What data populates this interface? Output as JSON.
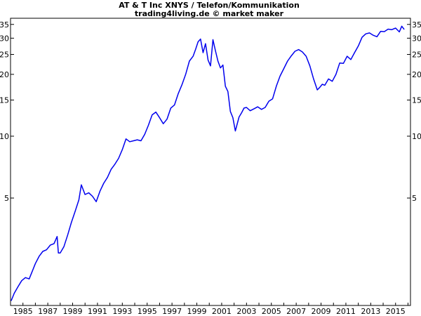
{
  "chart_data": {
    "type": "line",
    "title": "AT & T Inc XNYS / Telefon/Kommunikation",
    "subtitle": "trading4living.de © market maker",
    "x_unit": "year",
    "y_scale": "log",
    "xlim": [
      1984.0,
      2016.2
    ],
    "ylim": [
      1.5,
      37.5
    ],
    "x_ticks": [
      "1985",
      "1987",
      "1989",
      "1991",
      "1993",
      "1995",
      "1997",
      "1999",
      "2001",
      "2003",
      "2005",
      "2007",
      "2009",
      "2011",
      "2013",
      "2015"
    ],
    "y_ticks": [
      "5",
      "10",
      "15",
      "20",
      "25",
      "30",
      "35"
    ],
    "grid": false,
    "series": [
      {
        "color": "#0000ee",
        "x": [
          1984.05,
          1984.3,
          1984.6,
          1984.9,
          1985.2,
          1985.5,
          1985.75,
          1986.0,
          1986.3,
          1986.6,
          1986.9,
          1987.2,
          1987.5,
          1987.75,
          1987.85,
          1988.0,
          1988.3,
          1988.6,
          1988.9,
          1989.2,
          1989.5,
          1989.7,
          1990.0,
          1990.3,
          1990.6,
          1990.9,
          1991.2,
          1991.5,
          1991.8,
          1992.1,
          1992.4,
          1992.7,
          1993.0,
          1993.3,
          1993.6,
          1993.9,
          1994.2,
          1994.5,
          1994.8,
          1995.1,
          1995.4,
          1995.7,
          1996.0,
          1996.3,
          1996.6,
          1996.9,
          1997.2,
          1997.5,
          1997.8,
          1998.1,
          1998.4,
          1998.7,
          1998.9,
          1999.1,
          1999.3,
          1999.5,
          1999.7,
          1999.9,
          2000.1,
          2000.3,
          2000.5,
          2000.7,
          2000.9,
          2001.1,
          2001.3,
          2001.5,
          2001.7,
          2001.9,
          2002.1,
          2002.4,
          2002.6,
          2002.8,
          2003.0,
          2003.3,
          2003.6,
          2003.9,
          2004.2,
          2004.5,
          2004.8,
          2005.1,
          2005.4,
          2005.7,
          2006.0,
          2006.3,
          2006.6,
          2006.9,
          2007.2,
          2007.5,
          2007.8,
          2008.1,
          2008.4,
          2008.7,
          2008.9,
          2009.1,
          2009.3,
          2009.6,
          2009.9,
          2010.2,
          2010.5,
          2010.8,
          2011.1,
          2011.4,
          2011.7,
          2012.0,
          2012.3,
          2012.6,
          2012.9,
          2013.2,
          2013.5,
          2013.8,
          2014.1,
          2014.4,
          2014.7,
          2015.0,
          2015.3,
          2015.5,
          2015.7
        ],
        "values": [
          1.58,
          1.72,
          1.85,
          1.98,
          2.05,
          2.02,
          2.2,
          2.4,
          2.6,
          2.75,
          2.8,
          2.95,
          3.0,
          3.25,
          2.7,
          2.7,
          2.9,
          3.3,
          3.8,
          4.3,
          4.9,
          5.8,
          5.2,
          5.3,
          5.1,
          4.8,
          5.4,
          5.9,
          6.3,
          6.9,
          7.3,
          7.8,
          8.6,
          9.7,
          9.4,
          9.5,
          9.6,
          9.5,
          10.2,
          11.3,
          12.7,
          13.1,
          12.3,
          11.5,
          12.1,
          13.7,
          14.2,
          16.1,
          17.8,
          20.0,
          23.2,
          24.5,
          26.5,
          28.8,
          29.7,
          25.5,
          28.2,
          23.5,
          22.0,
          29.5,
          26.0,
          23.2,
          21.5,
          22.2,
          17.5,
          16.5,
          13.2,
          12.3,
          10.6,
          12.4,
          13.0,
          13.7,
          13.8,
          13.3,
          13.6,
          13.9,
          13.5,
          13.8,
          14.8,
          15.2,
          17.5,
          19.6,
          21.3,
          23.2,
          24.6,
          25.9,
          26.4,
          25.7,
          24.5,
          22.0,
          19.0,
          16.8,
          17.3,
          17.9,
          17.7,
          19.0,
          18.5,
          20.0,
          22.7,
          22.6,
          24.5,
          23.6,
          25.5,
          27.5,
          30.3,
          31.5,
          31.8,
          31.0,
          30.5,
          32.4,
          32.3,
          33.2,
          33.0,
          33.6,
          32.2,
          34.3,
          33.1
        ]
      }
    ]
  }
}
